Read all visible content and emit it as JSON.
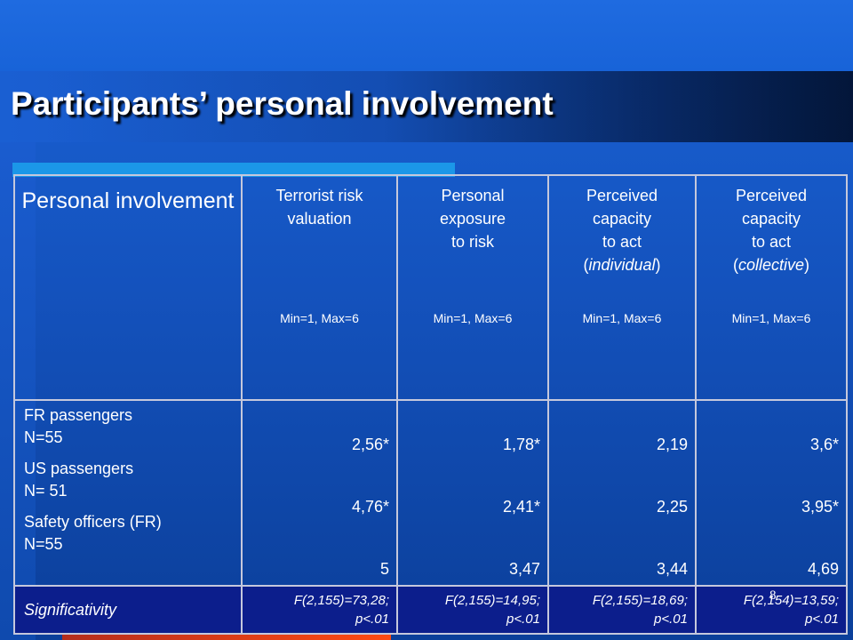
{
  "slide": {
    "title": "Participants’ personal involvement",
    "page_number": "8"
  },
  "table": {
    "corner_header": "Personal involvement",
    "columns": [
      {
        "title_lines": [
          "Terrorist risk",
          "valuation"
        ],
        "range": "Min=1, Max=6"
      },
      {
        "title_lines": [
          "Personal",
          "exposure",
          "to risk"
        ],
        "range": "Min=1, Max=6"
      },
      {
        "title_lines": [
          "Perceived",
          "capacity",
          "to act",
          "(individual)"
        ],
        "range": "Min=1, Max=6"
      },
      {
        "title_lines": [
          "Perceived",
          "capacity",
          "to act",
          "(collective)"
        ],
        "range": "Min=1, Max=6"
      }
    ],
    "groups": [
      {
        "name": "FR passengers",
        "n": "N=55"
      },
      {
        "name": "US passengers",
        "n": "N= 51"
      },
      {
        "name": "Safety officers (FR)",
        "n": "N=55"
      }
    ],
    "values": [
      [
        "2,56*",
        "1,78*",
        "2,19",
        "3,6*"
      ],
      [
        "4,76*",
        "2,41*",
        "2,25",
        "3,95*"
      ],
      [
        "5",
        "3,47",
        "3,44",
        "4,69"
      ]
    ],
    "significance_label": "Significativity",
    "significance": [
      {
        "line1": "F(2,155)=73,28;",
        "line2": "p<.01"
      },
      {
        "line1": "F(2,155)=14,95;",
        "line2": "p<.01"
      },
      {
        "line1": "F(2,155)=18,69;",
        "line2": "p<.01"
      },
      {
        "line1": "F(2,154)=13,59;",
        "line2": "p<.01"
      }
    ]
  },
  "colors": {
    "background": "#1452bd",
    "accent_cyan": "#1b97e8",
    "accent_red": "#e03a18",
    "significance_row": "#0c1e8c",
    "text": "#ffffff"
  }
}
